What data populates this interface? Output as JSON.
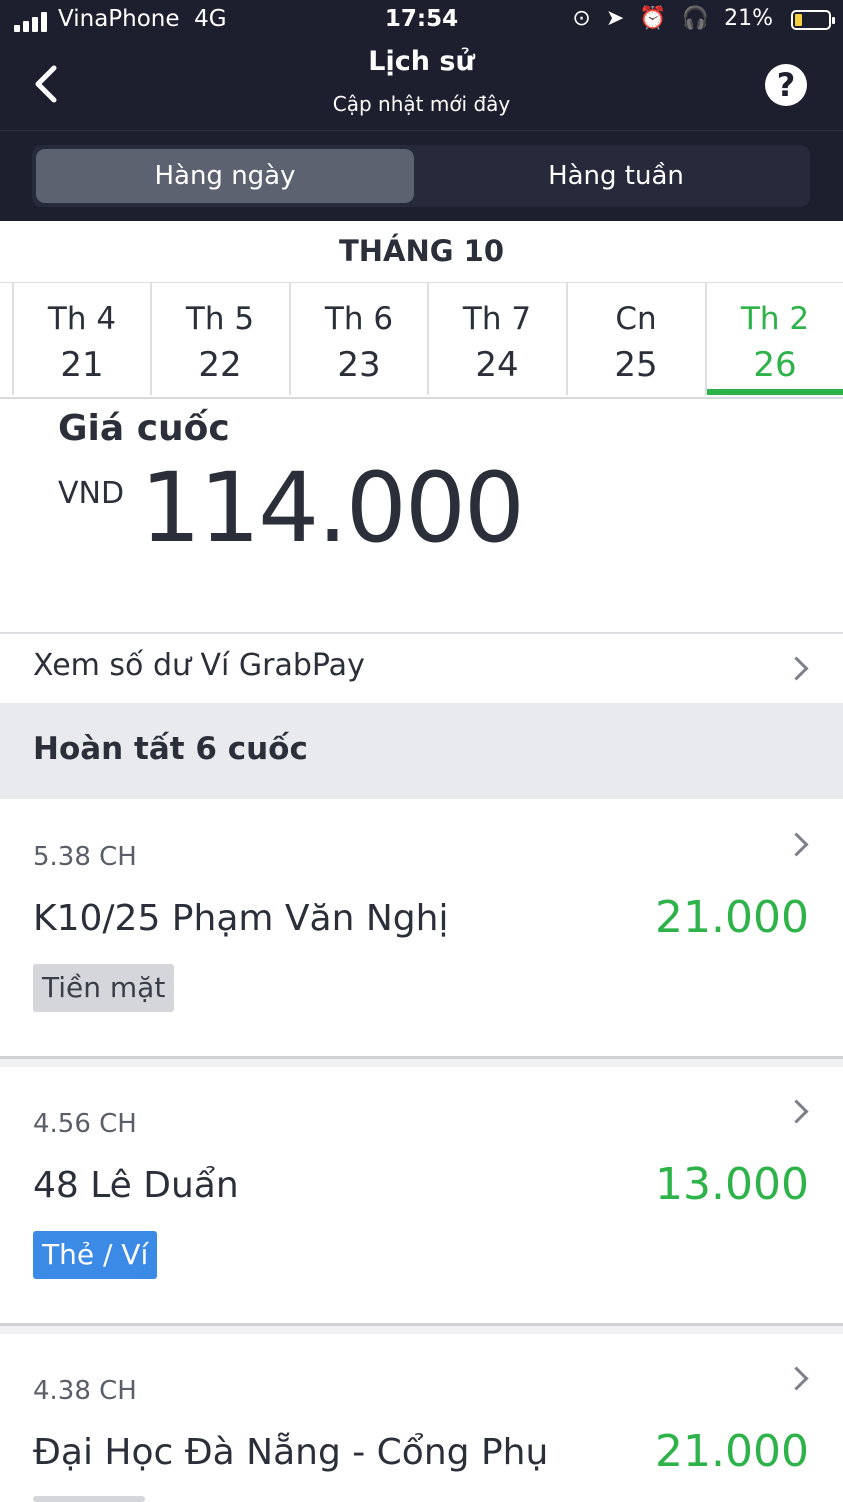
{
  "status_bar": {
    "carrier": "VinaPhone",
    "network": "4G",
    "time": "17:54",
    "battery": "21%",
    "icons": [
      "lock-rotation-icon",
      "location-arrow-icon",
      "alarm-icon",
      "headphones-icon",
      "battery-icon"
    ]
  },
  "nav": {
    "title": "Lịch sử",
    "subtitle": "Cập nhật mới đây",
    "help": "?"
  },
  "tabs": [
    {
      "label": "Hàng ngày",
      "active": true
    },
    {
      "label": "Hàng tuần",
      "active": false
    }
  ],
  "calendar": {
    "month": "THÁNG 10",
    "days": [
      {
        "name": "Th 4",
        "date": "21"
      },
      {
        "name": "Th 5",
        "date": "22"
      },
      {
        "name": "Th 6",
        "date": "23"
      },
      {
        "name": "Th 7",
        "date": "24"
      },
      {
        "name": "Cn",
        "date": "25"
      },
      {
        "name": "Th 2",
        "date": "26",
        "selected": true
      }
    ]
  },
  "summary": {
    "label": "Giá cuốc",
    "currency": "VND",
    "amount": "114.000"
  },
  "wallet": {
    "label": "Xem số dư Ví GrabPay"
  },
  "section": {
    "title": "Hoàn tất 6 cuốc"
  },
  "trips": [
    {
      "time": "5.38 CH",
      "address": "K10/25 Phạm Văn Nghị",
      "price": "21.000",
      "payment": "Tiền mặt",
      "payment_type": "cash"
    },
    {
      "time": "4.56 CH",
      "address": "48 Lê Duẩn",
      "price": "13.000",
      "payment": "Thẻ / Ví",
      "payment_type": "card"
    },
    {
      "time": "4.38 CH",
      "address": "Đại Học Đà Nẵng - Cổng Phụ",
      "price": "21.000",
      "payment": "",
      "payment_type": "cash"
    }
  ],
  "colors": {
    "header_bg": "#1d1f2e",
    "accent_green": "#2eb34a",
    "card_badge": "#3b8ae6",
    "cash_badge": "#d4d6db"
  }
}
